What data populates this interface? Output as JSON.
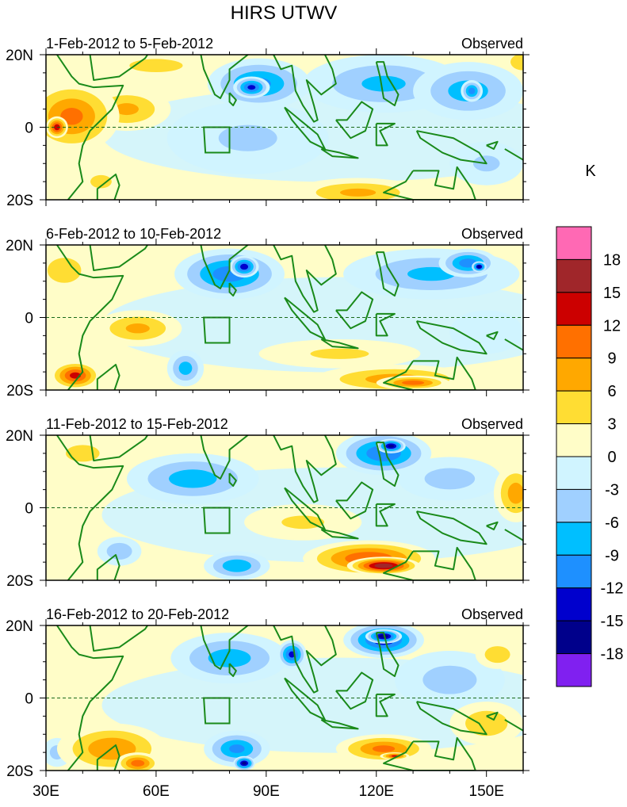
{
  "title": "HIRS UTWV",
  "chart_data": {
    "type": "heatmap",
    "title": "HIRS UTWV",
    "units": "K",
    "lon_range": [
      30,
      160
    ],
    "lat_range": [
      -20,
      20
    ],
    "x_ticks": [
      "30E",
      "60E",
      "90E",
      "120E",
      "150E"
    ],
    "y_ticks": [
      "20N",
      "0",
      "20S"
    ],
    "colorbar": {
      "labels": [
        "18",
        "15",
        "12",
        "9",
        "6",
        "3",
        "0",
        "-3",
        "-6",
        "-9",
        "-12",
        "-15",
        "-18"
      ],
      "colors": [
        "#ff69b4",
        "#a0262a",
        "#cc0000",
        "#ff7000",
        "#ffa800",
        "#ffdd33",
        "#fffdc8",
        "#d0f4ff",
        "#a0d0ff",
        "#00bfff",
        "#1e90ff",
        "#0000cd",
        "#00008b",
        "#8020f0"
      ]
    },
    "panels": [
      {
        "left": "1-Feb-2012 to 5-Feb-2012",
        "right": "Observed",
        "blobs": [
          [
            60,
            17,
            20,
            5,
            4
          ],
          [
            37,
            3,
            13,
            10,
            10
          ],
          [
            33,
            0,
            3,
            3,
            14
          ],
          [
            52,
            5,
            12,
            6,
            7
          ],
          [
            45,
            -15,
            8,
            5,
            4
          ],
          [
            115,
            -18,
            18,
            4,
            7
          ],
          [
            160,
            18,
            6,
            4,
            6
          ],
          [
            85,
            -3,
            22,
            10,
            -4
          ],
          [
            88,
            12,
            14,
            7,
            -10
          ],
          [
            86,
            11,
            5,
            3,
            -13
          ],
          [
            122,
            12,
            22,
            8,
            -7
          ],
          [
            145,
            10,
            15,
            8,
            -8
          ],
          [
            146,
            10,
            3,
            3,
            -11
          ],
          [
            150,
            -10,
            10,
            6,
            -4
          ]
        ]
      },
      {
        "left": "6-Feb-2012 to 10-Feb-2012",
        "right": "Observed",
        "blobs": [
          [
            35,
            13,
            8,
            6,
            6
          ],
          [
            55,
            -3,
            12,
            5,
            7
          ],
          [
            38,
            -16,
            7,
            4,
            13
          ],
          [
            110,
            -10,
            22,
            4,
            4
          ],
          [
            125,
            -17,
            22,
            4,
            8
          ],
          [
            130,
            -18,
            10,
            2,
            11
          ],
          [
            80,
            12,
            15,
            7,
            -11
          ],
          [
            84,
            14,
            4,
            3,
            -14
          ],
          [
            135,
            12,
            24,
            7,
            -7
          ],
          [
            145,
            15,
            8,
            4,
            -11
          ],
          [
            148,
            14,
            2,
            1.5,
            -17
          ],
          [
            68,
            -14,
            5,
            5,
            -8
          ],
          [
            150,
            -4,
            10,
            6,
            -3
          ]
        ]
      },
      {
        "left": "11-Feb-2012 to 15-Feb-2012",
        "right": "Observed",
        "blobs": [
          [
            40,
            15,
            8,
            4,
            6
          ],
          [
            100,
            -4,
            16,
            5,
            4
          ],
          [
            118,
            -14,
            18,
            5,
            12
          ],
          [
            122,
            -16,
            10,
            2.5,
            17
          ],
          [
            158,
            4,
            6,
            8,
            8
          ],
          [
            70,
            8,
            18,
            7,
            -8
          ],
          [
            122,
            15,
            13,
            6,
            -12
          ],
          [
            124,
            17,
            4,
            2,
            -16
          ],
          [
            50,
            -12,
            6,
            4,
            -6
          ],
          [
            82,
            -16,
            9,
            4,
            -9
          ],
          [
            140,
            8,
            14,
            6,
            -5
          ]
        ]
      },
      {
        "left": "16-Feb-2012 to 20-Feb-2012",
        "right": "Observed",
        "blobs": [
          [
            48,
            -14,
            15,
            7,
            9
          ],
          [
            55,
            -18,
            6,
            3,
            11
          ],
          [
            122,
            -14,
            13,
            4,
            10
          ],
          [
            125,
            -16,
            4,
            1,
            13
          ],
          [
            150,
            -7,
            10,
            6,
            6
          ],
          [
            153,
            12,
            6,
            4,
            6
          ],
          [
            80,
            11,
            16,
            7,
            -8
          ],
          [
            97,
            12,
            4,
            4,
            -13
          ],
          [
            122,
            16,
            11,
            5,
            -14
          ],
          [
            122,
            17,
            5,
            2,
            -17
          ],
          [
            82,
            -14,
            9,
            5,
            -10
          ],
          [
            84,
            -18,
            3,
            2,
            -16
          ],
          [
            140,
            5,
            15,
            8,
            -5
          ],
          [
            33,
            -15,
            4,
            4,
            -5
          ]
        ]
      }
    ]
  }
}
